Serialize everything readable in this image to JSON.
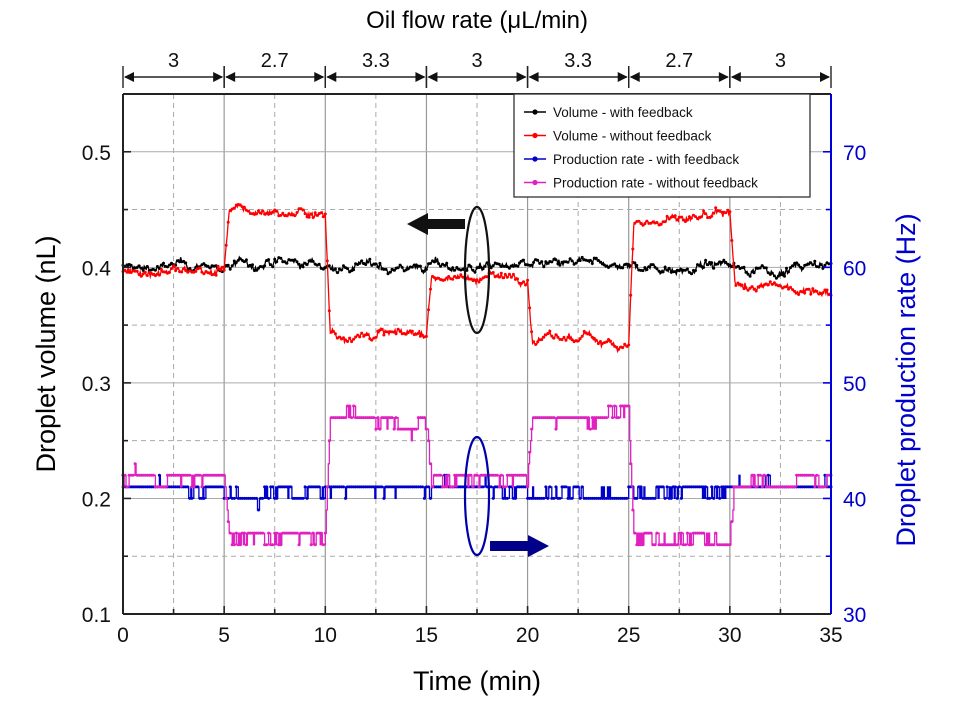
{
  "chart_data": {
    "type": "line",
    "title": "Oil flow rate (μL/min)",
    "xlabel": "Time (min)",
    "ylabel": "Droplet volume (nL)",
    "y2label": "Droplet production rate (Hz)",
    "xlim": [
      0,
      35
    ],
    "ylim": [
      0.1,
      0.55
    ],
    "y2lim": [
      30,
      75
    ],
    "xticks": [
      0,
      5,
      10,
      15,
      20,
      25,
      30,
      35
    ],
    "xtick_labels": [
      "0",
      "5",
      "10",
      "15",
      "20",
      "25",
      "30",
      "35"
    ],
    "yticks": [
      0.1,
      0.2,
      0.3,
      0.4,
      0.5
    ],
    "ytick_labels": [
      "0.1",
      "0.2",
      "0.3",
      "0.4",
      "0.5"
    ],
    "y2ticks": [
      30,
      40,
      50,
      60,
      70
    ],
    "y2tick_labels": [
      "30",
      "40",
      "50",
      "60",
      "70"
    ],
    "grid": true,
    "legend_position": "top-right",
    "flow_rate_segments": [
      {
        "start": 0,
        "end": 5,
        "label": "3"
      },
      {
        "start": 5,
        "end": 10,
        "label": "2.7"
      },
      {
        "start": 10,
        "end": 15,
        "label": "3.3"
      },
      {
        "start": 15,
        "end": 20,
        "label": "3"
      },
      {
        "start": 20,
        "end": 25,
        "label": "3.3"
      },
      {
        "start": 25,
        "end": 30,
        "label": "2.7"
      },
      {
        "start": 30,
        "end": 35,
        "label": "3"
      }
    ],
    "series": [
      {
        "name": "Volume - with feedback",
        "axis": "left",
        "color": "#000000",
        "segment_means": [
          0.4,
          0.402,
          0.401,
          0.401,
          0.401,
          0.401,
          0.4
        ],
        "noise": 0.008
      },
      {
        "name": "Volume - without feedback",
        "axis": "left",
        "color": "#ff0000",
        "segment_means": [
          0.397,
          0.448,
          0.343,
          0.392,
          0.337,
          0.44,
          0.382
        ],
        "noise": 0.008
      },
      {
        "name": "Production rate - with feedback",
        "axis": "right",
        "color": "#0000cc",
        "segment_means": [
          41.2,
          40.4,
          41.0,
          41.0,
          40.3,
          40.5,
          41.0
        ],
        "levels": [
          40,
          41,
          42
        ],
        "noise": 0.8
      },
      {
        "name": "Production rate - without feedback",
        "axis": "right",
        "color": "#e020c0",
        "segment_means": [
          41.5,
          36.8,
          47.0,
          42.0,
          47.2,
          36.8,
          41.5
        ],
        "levels_step": 1,
        "noise": 0.9
      }
    ],
    "annotations": [
      {
        "type": "ellipse",
        "target": "volume series",
        "x": 17.5,
        "color": "#000000",
        "arrow": "left",
        "arrow_meaning": "refers to left axis"
      },
      {
        "type": "ellipse",
        "target": "production rate series",
        "x": 17.5,
        "color": "#00008b",
        "arrow": "right",
        "arrow_meaning": "refers to right axis"
      }
    ]
  }
}
